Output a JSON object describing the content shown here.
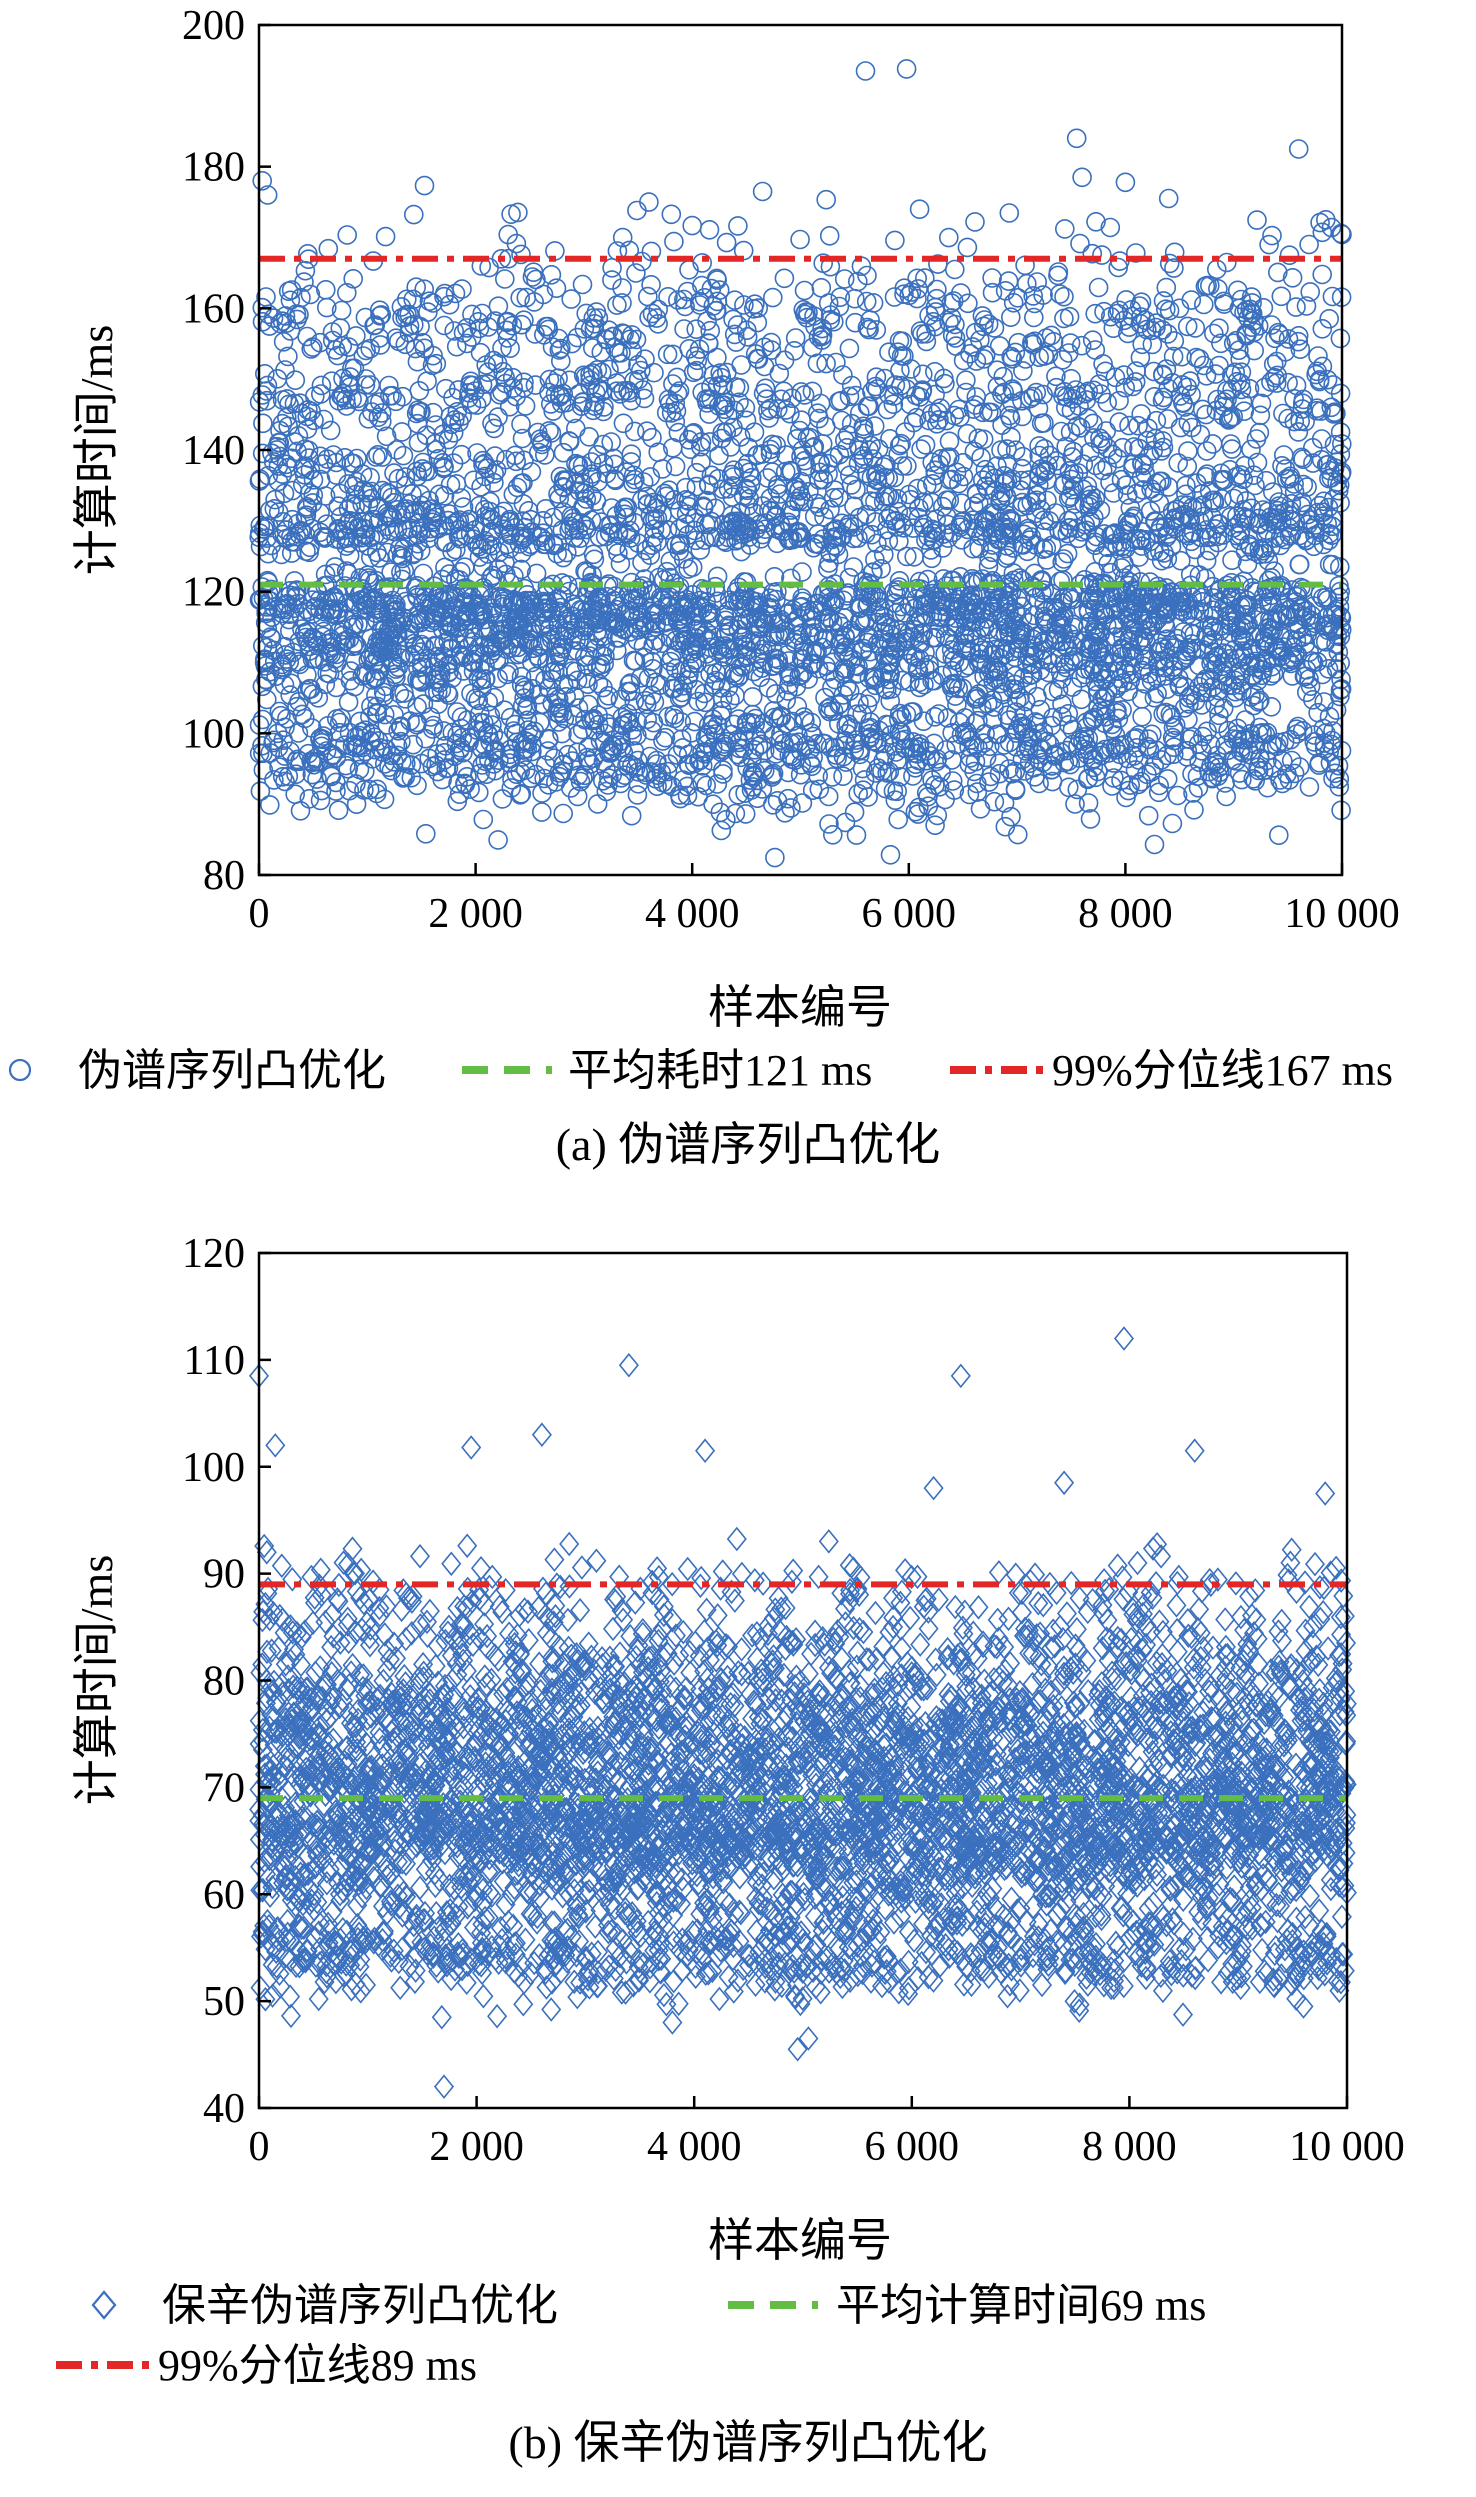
{
  "chart_data": [
    {
      "type": "scatter",
      "xlabel": "样本编号",
      "ylabel": "计算时间/ms",
      "xlim": [
        0,
        10000
      ],
      "ylim": [
        80,
        200
      ],
      "x_ticks": [
        0,
        2000,
        4000,
        6000,
        8000,
        10000
      ],
      "x_tick_labels": [
        "0",
        "2 000",
        "4 000",
        "6 000",
        "8 000",
        "10 000"
      ],
      "y_ticks": [
        80,
        100,
        120,
        140,
        160,
        180,
        200
      ],
      "y_tick_labels": [
        "80",
        "100",
        "120",
        "140",
        "160",
        "180",
        "200"
      ],
      "grid": false,
      "legend_position": "bottom",
      "caption": "(a) 伪谱序列凸优化",
      "series": [
        {
          "name": "伪谱序列凸优化",
          "kind": "points",
          "marker": "circle",
          "color": "#3a70bd",
          "sample_count": 10000,
          "bands": [
            {
              "center": 98,
              "spread": 4.5,
              "weight": 0.2
            },
            {
              "center": 111,
              "spread": 3,
              "weight": 0.17
            },
            {
              "center": 118,
              "spread": 2.5,
              "weight": 0.2
            },
            {
              "center": 129,
              "spread": 2.5,
              "weight": 0.15
            },
            {
              "center": 137,
              "spread": 3,
              "weight": 0.09
            },
            {
              "center": 147,
              "spread": 3,
              "weight": 0.09
            },
            {
              "center": 158,
              "spread": 3.5,
              "weight": 0.08
            },
            {
              "center": 167,
              "spread": 4,
              "weight": 0.02
            }
          ],
          "outliers": [
            {
              "x": 5600,
              "y": 193.5
            },
            {
              "x": 5980,
              "y": 193.8
            },
            {
              "x": 9600,
              "y": 182.5
            },
            {
              "x": 7550,
              "y": 184
            },
            {
              "x": 7600,
              "y": 178.5
            },
            {
              "x": 8000,
              "y": 177.8
            },
            {
              "x": 30,
              "y": 178
            },
            {
              "x": 80,
              "y": 176
            },
            {
              "x": 4650,
              "y": 176.5
            },
            {
              "x": 8400,
              "y": 175.5
            },
            {
              "x": 3600,
              "y": 175
            },
            {
              "x": 6100,
              "y": 174
            },
            {
              "x": 9850,
              "y": 172.5
            }
          ]
        },
        {
          "name": "平均耗时121 ms",
          "kind": "hline",
          "y": 121,
          "color": "#63bd45",
          "style": "dashed"
        },
        {
          "name": "99%分位线167 ms",
          "kind": "hline",
          "y": 167,
          "color": "#e32626",
          "style": "dashdot"
        }
      ]
    },
    {
      "type": "scatter",
      "xlabel": "样本编号",
      "ylabel": "计算时间/ms",
      "xlim": [
        0,
        10000
      ],
      "ylim": [
        40,
        120
      ],
      "x_ticks": [
        0,
        2000,
        4000,
        6000,
        8000,
        10000
      ],
      "x_tick_labels": [
        "0",
        "2 000",
        "4 000",
        "6 000",
        "8 000",
        "10 000"
      ],
      "y_ticks": [
        40,
        50,
        60,
        70,
        80,
        90,
        100,
        110,
        120
      ],
      "y_tick_labels": [
        "40",
        "50",
        "60",
        "70",
        "80",
        "90",
        "100",
        "110",
        "120"
      ],
      "grid": false,
      "legend_position": "bottom",
      "caption": "(b) 保辛伪谱序列凸优化",
      "series": [
        {
          "name": "保辛伪谱序列凸优化",
          "kind": "points",
          "marker": "diamond",
          "color": "#3a70bd",
          "sample_count": 10000,
          "bands": [
            {
              "center": 54,
              "spread": 2,
              "weight": 0.12
            },
            {
              "center": 59,
              "spread": 2.5,
              "weight": 0.06
            },
            {
              "center": 65,
              "spread": 3,
              "weight": 0.3
            },
            {
              "center": 70,
              "spread": 3,
              "weight": 0.17
            },
            {
              "center": 76,
              "spread": 3.5,
              "weight": 0.25
            },
            {
              "center": 84,
              "spread": 3,
              "weight": 0.08
            },
            {
              "center": 89,
              "spread": 2,
              "weight": 0.02
            }
          ],
          "outliers": [
            {
              "x": 1700,
              "y": 42
            },
            {
              "x": 4950,
              "y": 45.5
            },
            {
              "x": 5050,
              "y": 46.5
            },
            {
              "x": 3800,
              "y": 48
            },
            {
              "x": 1680,
              "y": 48.5
            },
            {
              "x": 9600,
              "y": 49.5
            },
            {
              "x": 7950,
              "y": 112
            },
            {
              "x": 3400,
              "y": 109.5
            },
            {
              "x": 6450,
              "y": 108.5
            },
            {
              "x": 0,
              "y": 108.5
            },
            {
              "x": 2600,
              "y": 103
            },
            {
              "x": 150,
              "y": 102
            },
            {
              "x": 4100,
              "y": 101.5
            },
            {
              "x": 8600,
              "y": 101.5
            },
            {
              "x": 1950,
              "y": 101.8
            },
            {
              "x": 6200,
              "y": 98
            },
            {
              "x": 7400,
              "y": 98.5
            },
            {
              "x": 9800,
              "y": 97.5
            }
          ]
        },
        {
          "name": "平均计算时间69 ms",
          "kind": "hline",
          "y": 69,
          "color": "#63bd45",
          "style": "dashed"
        },
        {
          "name": "99%分位线89 ms",
          "kind": "hline",
          "y": 89,
          "color": "#e32626",
          "style": "dashdot"
        }
      ]
    }
  ]
}
